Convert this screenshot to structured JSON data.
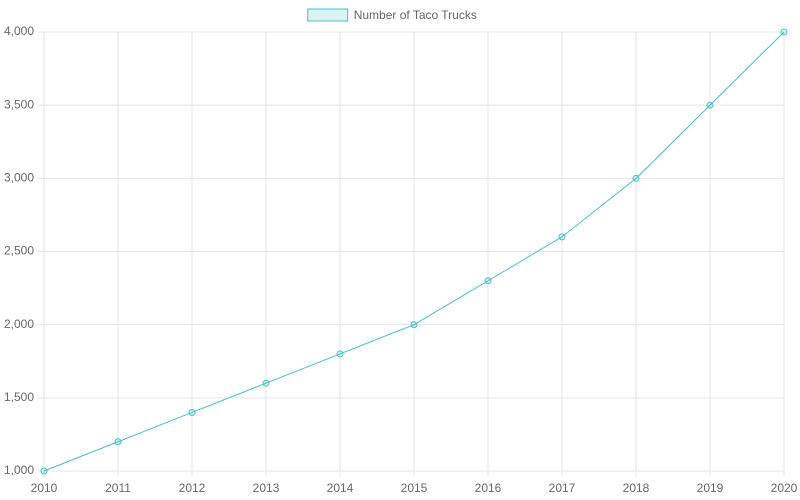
{
  "chart_data": {
    "type": "line",
    "categories": [
      "2010",
      "2011",
      "2012",
      "2013",
      "2014",
      "2015",
      "2016",
      "2017",
      "2018",
      "2019",
      "2020"
    ],
    "series": [
      {
        "name": "Number of Taco Trucks",
        "color": "#4bc0c0",
        "values": [
          1000,
          1200,
          1400,
          1600,
          1800,
          2000,
          2300,
          2600,
          3000,
          3500,
          4000
        ]
      }
    ],
    "ylim": [
      1000,
      4000
    ],
    "yticks": [
      {
        "value": 1000,
        "label": "1,000"
      },
      {
        "value": 1500,
        "label": "1,500"
      },
      {
        "value": 2000,
        "label": "2,000"
      },
      {
        "value": 2500,
        "label": "2,500"
      },
      {
        "value": 3000,
        "label": "3,000"
      },
      {
        "value": 3500,
        "label": "3,500"
      },
      {
        "value": 4000,
        "label": "4,000"
      }
    ],
    "grid": true,
    "legend": "top"
  }
}
